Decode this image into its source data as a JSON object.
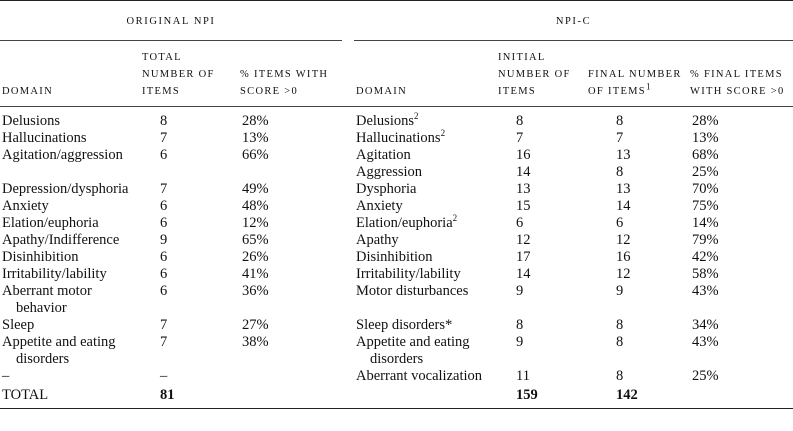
{
  "table": {
    "groups": [
      "ORIGINAL NPI",
      "NPI-C"
    ],
    "columns": [
      {
        "text": "DOMAIN"
      },
      {
        "text": "TOTAL NUMBER OF ITEMS"
      },
      {
        "text": "% ITEMS WITH SCORE >0"
      },
      {
        "text": "DOMAIN"
      },
      {
        "text": "INITIAL NUMBER OF ITEMS"
      },
      {
        "text": "FINAL NUMBER OF ITEMS",
        "sup": "1"
      },
      {
        "text": "% FINAL ITEMS WITH SCORE >0"
      }
    ],
    "rows": [
      [
        "Delusions",
        "8",
        "28%",
        {
          "text": "Delusions",
          "sup": "2"
        },
        "8",
        "8",
        "28%"
      ],
      [
        "Hallucinations",
        "7",
        "13%",
        {
          "text": "Hallucinations",
          "sup": "2"
        },
        "7",
        "7",
        "13%"
      ],
      [
        "Agitation/aggression",
        "6",
        "66%",
        "Agitation",
        "16",
        "13",
        "68%"
      ],
      [
        null,
        null,
        null,
        "Aggression",
        "14",
        "8",
        "25%"
      ],
      [
        "Depression/dysphoria",
        "7",
        "49%",
        "Dysphoria",
        "13",
        "13",
        "70%"
      ],
      [
        "Anxiety",
        "6",
        "48%",
        "Anxiety",
        "15",
        "14",
        "75%"
      ],
      [
        "Elation/euphoria",
        "6",
        "12%",
        {
          "text": "Elation/euphoria",
          "sup": "2"
        },
        "6",
        "6",
        "14%"
      ],
      [
        "Apathy/Indifference",
        "9",
        "65%",
        "Apathy",
        "12",
        "12",
        "79%"
      ],
      [
        "Disinhibition",
        "6",
        "26%",
        "Disinhibition",
        "17",
        "16",
        "42%"
      ],
      [
        "Irritability/lability",
        "6",
        "41%",
        "Irritability/lability",
        "14",
        "12",
        "58%"
      ],
      [
        "Aberrant motor behavior",
        "6",
        "36%",
        "Motor disturbances",
        "9",
        "9",
        "43%"
      ],
      [
        "Sleep",
        "7",
        "27%",
        "Sleep disorders*",
        "8",
        "8",
        "34%"
      ],
      [
        "Appetite and eating disorders",
        "7",
        "38%",
        "Appetite and eating disorders",
        "9",
        "8",
        "43%"
      ],
      [
        "–",
        "–",
        null,
        "Aberrant vocalization",
        "11",
        "8",
        "25%"
      ],
      [
        "TOTAL",
        "81",
        null,
        null,
        "159",
        "142",
        null
      ]
    ]
  }
}
